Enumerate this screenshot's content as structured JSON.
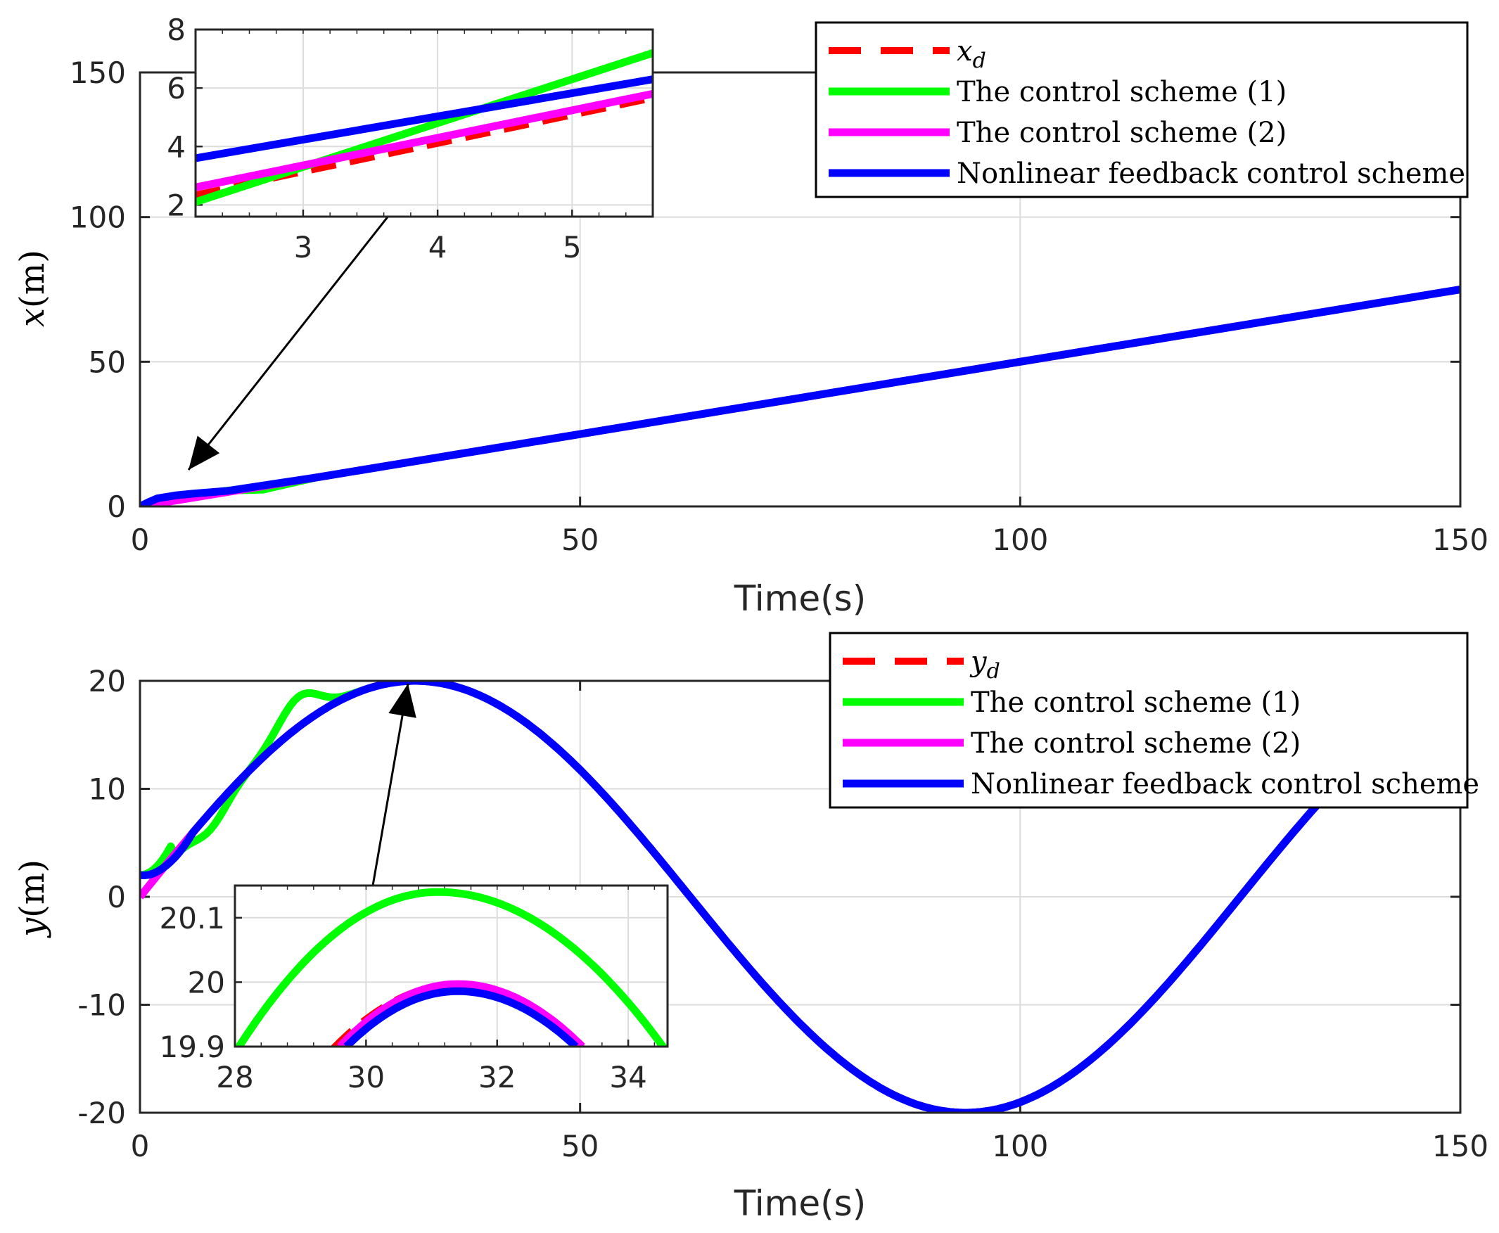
{
  "chart_data": [
    {
      "type": "line",
      "xlabel": "Time(s)",
      "ylabel_var": "x",
      "ylabel_unit": "(m)",
      "xlim": [
        0,
        150
      ],
      "ylim": [
        0,
        150
      ],
      "xticks": [
        "0",
        "50",
        "100",
        "150"
      ],
      "yticks": [
        "0",
        "50",
        "100",
        "150"
      ],
      "grid": true,
      "legend_position": "top-right",
      "series": [
        {
          "name": "x",
          "sub": "d",
          "color": "#ff0000",
          "dash": true,
          "x": [
            0,
            2,
            5,
            10,
            20,
            50,
            100,
            150
          ],
          "y": [
            0,
            1,
            2.5,
            5,
            10,
            25,
            50,
            75
          ]
        },
        {
          "name": "The control scheme (1)",
          "color": "#00ff00",
          "x": [
            0,
            2,
            5,
            10,
            14,
            20,
            50,
            100,
            150
          ],
          "y": [
            0,
            1.2,
            3.5,
            5.5,
            5.8,
            10,
            25,
            50,
            75
          ]
        },
        {
          "name": "The control scheme (2)",
          "color": "#ff00ff",
          "x": [
            0,
            2,
            5,
            10,
            20,
            50,
            100,
            150
          ],
          "y": [
            0,
            1,
            2.5,
            5,
            10,
            25,
            50,
            75
          ]
        },
        {
          "name": "Nonlinear feedback control scheme",
          "color": "#0000ff",
          "x": [
            0,
            1,
            2,
            4,
            6,
            10,
            20,
            50,
            100,
            150
          ],
          "y": [
            0,
            1.5,
            2.8,
            3.8,
            4.4,
            5.4,
            10,
            25,
            50,
            75
          ]
        }
      ],
      "inset": {
        "xlim": [
          2.2,
          5.6
        ],
        "ylim": [
          1.6,
          8
        ],
        "xticks": [
          "3",
          "4",
          "5"
        ],
        "yticks": [
          "2",
          "4",
          "6",
          "8"
        ],
        "series": [
          {
            "color": "#ff0000",
            "dash": true,
            "x": [
              2.2,
              5.6
            ],
            "y": [
              2.35,
              5.65
            ]
          },
          {
            "color": "#00ff00",
            "x": [
              2.2,
              5.6
            ],
            "y": [
              2.1,
              7.2
            ]
          },
          {
            "color": "#ff00ff",
            "x": [
              2.2,
              5.6
            ],
            "y": [
              2.6,
              5.8
            ]
          },
          {
            "color": "#0000ff",
            "x": [
              2.2,
              5.6
            ],
            "y": [
              3.6,
              6.3
            ]
          }
        ]
      }
    },
    {
      "type": "line",
      "xlabel": "Time(s)",
      "ylabel_var": "y",
      "ylabel_unit": "(m)",
      "xlim": [
        0,
        150
      ],
      "ylim": [
        -20,
        20
      ],
      "xticks": [
        "0",
        "50",
        "100",
        "150"
      ],
      "yticks": [
        "-20",
        "-10",
        "0",
        "10",
        "20"
      ],
      "grid": true,
      "legend_position": "top-right",
      "series": [
        {
          "name": "y",
          "sub": "d",
          "color": "#ff0000",
          "dash": true,
          "formula": "sine"
        },
        {
          "name": "The control scheme (1)",
          "color": "#00ff00",
          "formula": "sine_c1"
        },
        {
          "name": "The control scheme (2)",
          "color": "#ff00ff",
          "formula": "sine"
        },
        {
          "name": "Nonlinear feedback control scheme",
          "color": "#0000ff",
          "formula": "sine_nl"
        }
      ],
      "inset": {
        "xlim": [
          28,
          34.6
        ],
        "ylim": [
          19.9,
          20.15
        ],
        "xticks": [
          "28",
          "30",
          "32",
          "34"
        ],
        "yticks": [
          "19.9",
          "20",
          "20.1"
        ],
        "series": [
          {
            "color": "#00ff00",
            "peak_x": 31.1,
            "peak_y": 20.14,
            "x0": 28,
            "x1": 34.6,
            "y_end": 19.89
          },
          {
            "color": "#ff0000",
            "dash": true,
            "peak_x": 31.4,
            "peak_y": 19.997,
            "x0": 29.5,
            "x1": 33.3,
            "y_end": 19.898
          },
          {
            "color": "#ff00ff",
            "peak_x": 31.4,
            "peak_y": 19.997,
            "x0": 29.6,
            "x1": 33.3,
            "y_end": 19.9
          },
          {
            "color": "#0000ff",
            "peak_x": 31.4,
            "peak_y": 19.986,
            "x0": 29.7,
            "x1": 33.2,
            "y_end": 19.9
          }
        ]
      }
    }
  ]
}
